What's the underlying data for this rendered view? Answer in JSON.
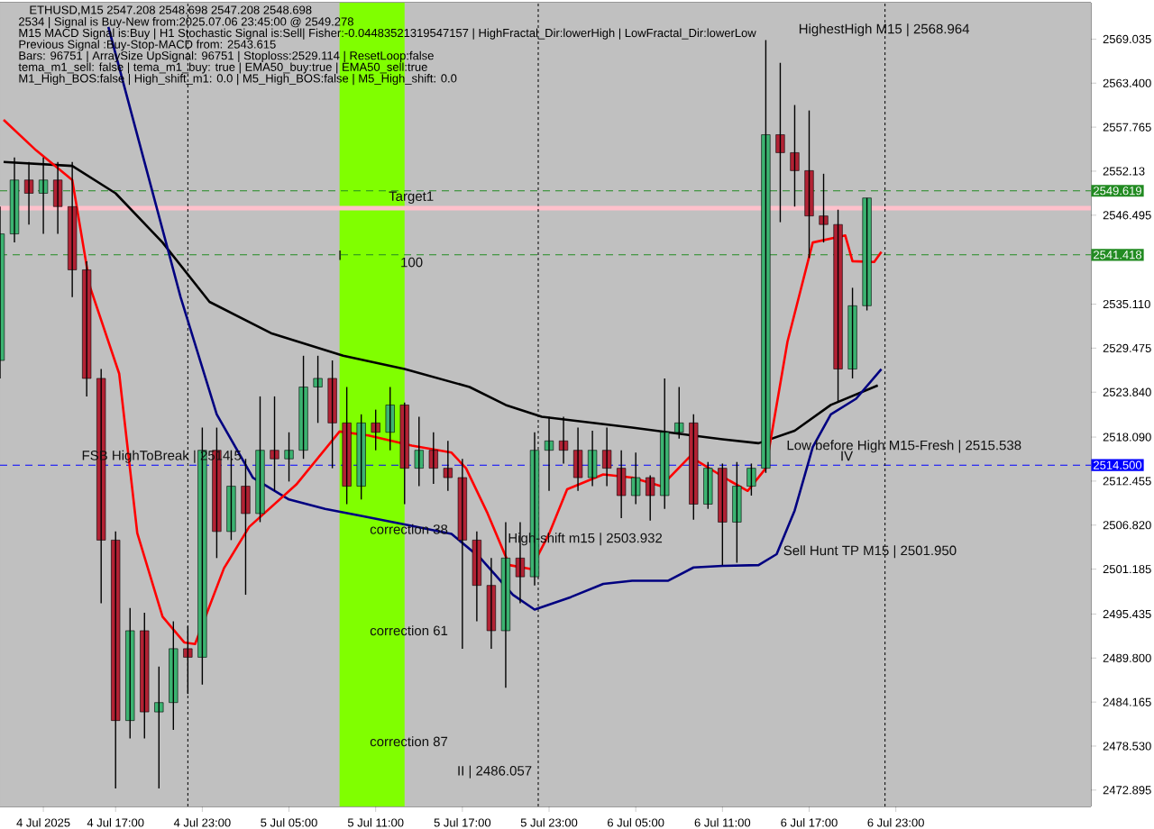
{
  "chart_data": {
    "type": "candlestick",
    "title": "ETHUSD,M15  2547.208 2548.698 2547.208 2548.698",
    "x": [
      "2025-07-04T09:00",
      "2025-07-04T10:00",
      "2025-07-04T11:00",
      "2025-07-04T12:00",
      "2025-07-04T13:00",
      "2025-07-04T14:00",
      "2025-07-04T15:00",
      "2025-07-04T16:00",
      "2025-07-04T17:00",
      "2025-07-04T18:00",
      "2025-07-04T19:00",
      "2025-07-04T20:00",
      "2025-07-04T21:00",
      "2025-07-04T22:00",
      "2025-07-04T23:00",
      "2025-07-05T00:00",
      "2025-07-05T01:00",
      "2025-07-05T02:00",
      "2025-07-05T03:00",
      "2025-07-05T04:00",
      "2025-07-05T05:00",
      "2025-07-05T06:00",
      "2025-07-05T07:00",
      "2025-07-05T08:00",
      "2025-07-05T09:00",
      "2025-07-05T10:00",
      "2025-07-05T11:00",
      "2025-07-05T12:00",
      "2025-07-05T13:00",
      "2025-07-05T14:00",
      "2025-07-05T15:00",
      "2025-07-05T16:00",
      "2025-07-05T17:00",
      "2025-07-05T18:00",
      "2025-07-05T19:00",
      "2025-07-05T20:00",
      "2025-07-05T21:00",
      "2025-07-05T22:00",
      "2025-07-05T23:00",
      "2025-07-06T00:00",
      "2025-07-06T01:00",
      "2025-07-06T02:00",
      "2025-07-06T03:00",
      "2025-07-06T04:00",
      "2025-07-06T05:00",
      "2025-07-06T06:00",
      "2025-07-06T07:00",
      "2025-07-06T08:00",
      "2025-07-06T09:00",
      "2025-07-06T10:00",
      "2025-07-06T11:00",
      "2025-07-06T12:00",
      "2025-07-06T13:00",
      "2025-07-06T14:00",
      "2025-07-06T15:00",
      "2025-07-06T16:00",
      "2025-07-06T17:00",
      "2025-07-06T18:00",
      "2025-07-06T19:00",
      "2025-07-06T20:00",
      "2025-07-06T21:00"
    ],
    "ohlc": [
      [
        2527.9,
        2547.6,
        2525.6,
        2544.1
      ],
      [
        2544.1,
        2553.9,
        2543.0,
        2551.0
      ],
      [
        2551.0,
        2553.3,
        2545.3,
        2549.3
      ],
      [
        2549.3,
        2553.9,
        2544.1,
        2551.0
      ],
      [
        2551.0,
        2553.3,
        2544.1,
        2547.6
      ],
      [
        2547.6,
        2553.3,
        2536.0,
        2539.5
      ],
      [
        2539.5,
        2540.6,
        2523.3,
        2525.6
      ],
      [
        2525.6,
        2526.8,
        2496.8,
        2504.9
      ],
      [
        2504.9,
        2506.0,
        2473.1,
        2481.8
      ],
      [
        2481.8,
        2496.2,
        2479.5,
        2493.3
      ],
      [
        2493.3,
        2495.6,
        2479.5,
        2482.9
      ],
      [
        2482.9,
        2488.7,
        2473.1,
        2484.1
      ],
      [
        2484.1,
        2494.5,
        2480.6,
        2491.0
      ],
      [
        2491.0,
        2493.9,
        2485.2,
        2489.9
      ],
      [
        2489.9,
        2519.3,
        2486.4,
        2516.4
      ],
      [
        2516.4,
        2519.3,
        2502.6,
        2506.0
      ],
      [
        2506.0,
        2516.4,
        2504.9,
        2511.8
      ],
      [
        2511.8,
        2515.3,
        2497.9,
        2508.3
      ],
      [
        2508.3,
        2523.3,
        2507.2,
        2516.4
      ],
      [
        2516.4,
        2523.3,
        2511.2,
        2515.3
      ],
      [
        2515.3,
        2518.7,
        2512.4,
        2516.4
      ],
      [
        2516.4,
        2528.5,
        2515.3,
        2524.5
      ],
      [
        2524.5,
        2528.5,
        2519.9,
        2525.6
      ],
      [
        2525.6,
        2527.9,
        2514.1,
        2519.9
      ],
      [
        2519.9,
        2524.5,
        2509.5,
        2511.8
      ],
      [
        2511.8,
        2521.0,
        2510.1,
        2519.9
      ],
      [
        2519.9,
        2521.6,
        2516.4,
        2518.7
      ],
      [
        2518.7,
        2524.5,
        2516.4,
        2522.2
      ],
      [
        2522.2,
        2522.5,
        2509.5,
        2514.1
      ],
      [
        2514.1,
        2520.7,
        2511.8,
        2516.4
      ],
      [
        2516.4,
        2518.7,
        2512.1,
        2514.1
      ],
      [
        2514.1,
        2517.6,
        2511.2,
        2512.9
      ],
      [
        2512.9,
        2515.3,
        2491.0,
        2504.9
      ],
      [
        2504.9,
        2506.0,
        2494.5,
        2499.1
      ],
      [
        2499.1,
        2502.6,
        2491.0,
        2493.3
      ],
      [
        2493.3,
        2507.2,
        2486.0,
        2502.6
      ],
      [
        2502.6,
        2507.2,
        2496.8,
        2500.2
      ],
      [
        2500.2,
        2518.7,
        2499.1,
        2516.4
      ],
      [
        2516.4,
        2520.7,
        2511.2,
        2517.6
      ],
      [
        2517.6,
        2520.7,
        2514.7,
        2516.4
      ],
      [
        2516.4,
        2519.3,
        2511.2,
        2512.9
      ],
      [
        2512.9,
        2518.9,
        2511.8,
        2516.4
      ],
      [
        2516.4,
        2519.3,
        2511.8,
        2514.1
      ],
      [
        2514.1,
        2516.4,
        2507.7,
        2510.6
      ],
      [
        2510.6,
        2516.1,
        2509.5,
        2512.9
      ],
      [
        2512.9,
        2513.2,
        2507.4,
        2510.6
      ],
      [
        2510.6,
        2525.6,
        2508.9,
        2518.7
      ],
      [
        2518.7,
        2524.5,
        2517.9,
        2519.9
      ],
      [
        2519.9,
        2521.0,
        2507.5,
        2509.5
      ],
      [
        2509.5,
        2514.9,
        2508.9,
        2514.1
      ],
      [
        2514.1,
        2514.7,
        2501.7,
        2507.2
      ],
      [
        2507.2,
        2514.9,
        2502.0,
        2511.8
      ],
      [
        2511.8,
        2514.7,
        2510.6,
        2514.1
      ],
      [
        2514.1,
        2568.9,
        2513.5,
        2556.8
      ],
      [
        2556.8,
        2566.0,
        2545.6,
        2554.5
      ],
      [
        2554.5,
        2560.6,
        2547.6,
        2552.2
      ],
      [
        2552.2,
        2559.9,
        2541.0,
        2546.4
      ],
      [
        2546.4,
        2551.8,
        2543.0,
        2545.3
      ],
      [
        2545.3,
        2547.2,
        2522.5,
        2526.8
      ],
      [
        2526.8,
        2537.2,
        2525.6,
        2534.9
      ],
      [
        2534.9,
        2548.7,
        2534.3,
        2548.7
      ]
    ],
    "series": [
      {
        "type": "line",
        "color": "#000000",
        "x": [
          "2025-07-04T09:15",
          "2025-07-04T14:00",
          "2025-07-04T17:00",
          "2025-07-04T20:15",
          "2025-07-04T23:30",
          "2025-07-05T03:45",
          "2025-07-05T08:45",
          "2025-07-05T13:00",
          "2025-07-05T17:30",
          "2025-07-05T20:00",
          "2025-07-05T22:30",
          "2025-07-06T04:45",
          "2025-07-06T11:00",
          "2025-07-06T13:30",
          "2025-07-06T16:00",
          "2025-07-06T18:30",
          "2025-07-06T21:45"
        ],
        "values": [
          2553.3,
          2552.8,
          2549.3,
          2543.0,
          2535.4,
          2531.4,
          2528.5,
          2526.8,
          2524.5,
          2522.2,
          2520.7,
          2519.3,
          2517.8,
          2517.3,
          2518.9,
          2522.2,
          2524.7
        ]
      },
      {
        "type": "line",
        "color": "#000080",
        "x": [
          "2025-07-04T16:30",
          "2025-07-04T19:00",
          "2025-07-04T21:30",
          "2025-07-05T00:00",
          "2025-07-05T02:30",
          "2025-07-05T05:00",
          "2025-07-05T07:30",
          "2025-07-05T10:00",
          "2025-07-05T13:00",
          "2025-07-05T16:15",
          "2025-07-05T18:15",
          "2025-07-05T20:30",
          "2025-07-05T22:00",
          "2025-07-06T00:30",
          "2025-07-06T02:45",
          "2025-07-06T04:45",
          "2025-07-06T07:15",
          "2025-07-06T09:00",
          "2025-07-06T11:00",
          "2025-07-06T13:30",
          "2025-07-06T14:45",
          "2025-07-06T16:00",
          "2025-07-06T17:15",
          "2025-07-06T18:30",
          "2025-07-06T20:15",
          "2025-07-06T22:00"
        ],
        "values": [
          2570.6,
          2553.3,
          2536.0,
          2521.0,
          2512.9,
          2510.1,
          2508.9,
          2508.0,
          2506.9,
          2505.7,
          2502.6,
          2497.9,
          2496.0,
          2497.6,
          2499.3,
          2499.7,
          2499.7,
          2501.4,
          2501.6,
          2501.7,
          2503.1,
          2508.7,
          2516.8,
          2521.0,
          2523.0,
          2526.8
        ]
      },
      {
        "type": "line",
        "color": "#ff0000",
        "x": [
          "2025-07-04T09:15",
          "2025-07-04T11:30",
          "2025-07-04T14:00",
          "2025-07-04T15:15",
          "2025-07-04T17:15",
          "2025-07-04T18:30",
          "2025-07-04T20:15",
          "2025-07-04T21:45",
          "2025-07-04T22:30",
          "2025-07-05T00:30",
          "2025-07-05T02:15",
          "2025-07-05T05:30",
          "2025-07-05T08:30",
          "2025-07-05T10:30",
          "2025-07-05T13:30",
          "2025-07-05T16:15",
          "2025-07-05T17:15",
          "2025-07-05T18:45",
          "2025-07-05T20:15",
          "2025-07-05T21:45",
          "2025-07-05T23:00",
          "2025-07-06T00:15",
          "2025-07-06T02:45",
          "2025-07-06T04:45",
          "2025-07-06T06:45",
          "2025-07-06T08:45",
          "2025-07-06T11:30",
          "2025-07-06T12:45",
          "2025-07-06T14:00",
          "2025-07-06T15:30",
          "2025-07-06T17:15",
          "2025-07-06T19:30",
          "2025-07-06T20:00",
          "2025-07-06T21:30",
          "2025-07-06T22:00"
        ],
        "values": [
          2558.7,
          2554.8,
          2551.0,
          2537.2,
          2526.2,
          2505.8,
          2495.1,
          2491.8,
          2491.6,
          2501.3,
          2506.6,
          2512.0,
          2518.8,
          2518.3,
          2517.0,
          2516.1,
          2514.1,
          2508.3,
          2501.7,
          2501.2,
          2505.7,
          2511.4,
          2513.3,
          2512.9,
          2511.8,
          2515.6,
          2512.5,
          2511.2,
          2514.1,
          2530.3,
          2543.0,
          2543.9,
          2540.6,
          2540.5,
          2541.8
        ]
      }
    ],
    "xlim": [
      "2025-07-04T09:00",
      "2025-07-07T12:30"
    ],
    "ylim": [
      2470.8,
      2573.7
    ],
    "xticks": [
      {
        "value": "2025-07-04T12:00",
        "label": "4 Jul 2025"
      },
      {
        "value": "2025-07-04T17:00",
        "label": "4 Jul 17:00"
      },
      {
        "value": "2025-07-04T23:00",
        "label": "4 Jul 23:00"
      },
      {
        "value": "2025-07-05T05:00",
        "label": "5 Jul 05:00"
      },
      {
        "value": "2025-07-05T11:00",
        "label": "5 Jul 11:00"
      },
      {
        "value": "2025-07-05T17:00",
        "label": "5 Jul 17:00"
      },
      {
        "value": "2025-07-05T23:00",
        "label": "5 Jul 23:00"
      },
      {
        "value": "2025-07-06T05:00",
        "label": "6 Jul 05:00"
      },
      {
        "value": "2025-07-06T11:00",
        "label": "6 Jul 11:00"
      },
      {
        "value": "2025-07-06T17:00",
        "label": "6 Jul 17:00"
      },
      {
        "value": "2025-07-06T23:00",
        "label": "6 Jul 23:00"
      }
    ],
    "yticks": [
      2472.895,
      {
        "value": 2478.53,
        "label": "2478.530"
      },
      2484.165,
      {
        "value": 2489.8,
        "label": "2489.800"
      },
      2495.435,
      2501.185,
      {
        "value": 2506.82,
        "label": "2506.820"
      },
      2512.455,
      {
        "value": 2518.09,
        "label": "2518.090"
      },
      {
        "value": 2523.84,
        "label": "2523.840"
      },
      2529.475,
      {
        "value": 2535.11,
        "label": "2535.110"
      },
      2546.495,
      2552.13,
      2557.765,
      {
        "value": 2563.4,
        "label": "2563.400"
      },
      2569.035
    ],
    "bands": [
      {
        "axis": "x",
        "from": "2025-07-05T08:30",
        "to": "2025-07-05T13:00",
        "color": "#80ff00"
      }
    ],
    "ref_lines": [
      {
        "axis": "y",
        "value": 2547.4,
        "color": "#ffc0cb",
        "line_style": "solid"
      },
      {
        "axis": "y",
        "value": 2549.619,
        "label": "2549.619",
        "color": "#228b22",
        "line_style": "dashed"
      },
      {
        "axis": "y",
        "value": 2541.418,
        "label": "2541.418",
        "color": "#228b22",
        "line_style": "dashed"
      },
      {
        "axis": "y",
        "value": 2514.5,
        "label": "2514.500",
        "color": "#0000ff",
        "line_style": "dashed"
      },
      {
        "axis": "x",
        "value": "2025-07-04T22:00",
        "color": "#000000",
        "line_style": "dotted"
      },
      {
        "axis": "x",
        "value": "2025-07-05T22:15",
        "color": "#000000",
        "line_style": "dotted"
      },
      {
        "axis": "x",
        "value": "2025-07-06T22:15",
        "color": "#000000",
        "line_style": "dotted"
      }
    ],
    "annotations": [
      "2534 | Signal is Buy-New from:2025.07.06 23:45:00 @ 2549.278",
      "M15 MACD Signal is:Buy | H1 Stochastic Signal is:Sell| Fisher:-0.04483521319547157 | HighFractal_Dir:lowerHigh | LowFractal_Dir:lowerLow",
      "Previous Signal :Buy-Stop-MACD from: 2543.615",
      "Bars: 96751 | ArraySize UpSignal: 96751 | Stoploss:2529.114 | ResetLoop:false",
      "tema_m1_sell: false | tema_m1_buy: true | EMA50_buy:true | EMA50_sell:true",
      "M1_High_BOS:false | High_shift_m1: 0.0 | M5_High_BOS:false | M5_High_shift: 0.0",
      "HighestHigh   M15 | 2568.964",
      "Low before High   M15-Fresh | 2515.538",
      "Sell Hunt TP M15 | 2501.950",
      "II | 2486.057",
      "100",
      "correction 38",
      "correction 61",
      "correction 87",
      {
        "text": "High-shift m15 | 2503.932",
        "x": "2025-07-05T20:00",
        "y": 2503.932
      },
      {
        "text": "FSB HighToBreak | 2514.5",
        "x": "2025-07-04T14:30",
        "y": 2514.5
      },
      {
        "text": "IV",
        "x": "2025-07-06T19:00",
        "y": 2514.8
      },
      {
        "text": "I",
        "x": "2025-07-05T08:15",
        "y": 2540.5
      },
      {
        "text": "Target1",
        "x": "2025-07-05T11:45",
        "y": 2547.7
      }
    ]
  }
}
